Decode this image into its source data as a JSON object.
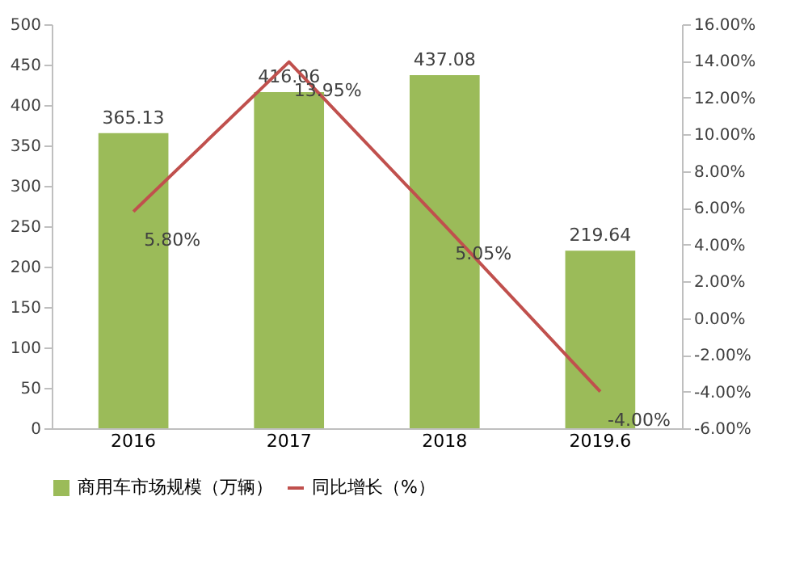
{
  "chart_data": {
    "type": "bar",
    "categories": [
      "2016",
      "2017",
      "2018",
      "2019.6"
    ],
    "series": [
      {
        "name": "商用车市场规模（万辆）",
        "color": "#9bbb59",
        "values": [
          365.13,
          416.06,
          437.08,
          219.64
        ],
        "value_labels": [
          "365.13",
          "416.06",
          "437.08",
          "219.64"
        ]
      },
      {
        "name": "同比增长（%）",
        "type": "line",
        "axis": "y2",
        "color": "#c0504d",
        "values": [
          5.8,
          13.95,
          5.05,
          -4.0
        ],
        "value_labels": [
          "5.80%",
          "13.95%",
          "5.05%",
          "-4.00%"
        ]
      }
    ],
    "ylim": [
      0,
      500
    ],
    "yticks": [
      0,
      50,
      100,
      150,
      200,
      250,
      300,
      350,
      400,
      450,
      500
    ],
    "y2lim": [
      -6,
      16
    ],
    "y2ticks": [
      {
        "value": -6,
        "label": "-6.00%"
      },
      {
        "value": -4,
        "label": "-4.00%"
      },
      {
        "value": -2,
        "label": "-2.00%"
      },
      {
        "value": 0,
        "label": "0.00%"
      },
      {
        "value": 2,
        "label": "2.00%"
      },
      {
        "value": 4,
        "label": "4.00%"
      },
      {
        "value": 6,
        "label": "6.00%"
      },
      {
        "value": 8,
        "label": "8.00%"
      },
      {
        "value": 10,
        "label": "10.00%"
      },
      {
        "value": 12,
        "label": "12.00%"
      },
      {
        "value": 14,
        "label": "14.00%"
      },
      {
        "value": 16,
        "label": "16.00%"
      }
    ],
    "grid": false,
    "legend": "bottom",
    "marker": "none",
    "line_style": "solid"
  }
}
